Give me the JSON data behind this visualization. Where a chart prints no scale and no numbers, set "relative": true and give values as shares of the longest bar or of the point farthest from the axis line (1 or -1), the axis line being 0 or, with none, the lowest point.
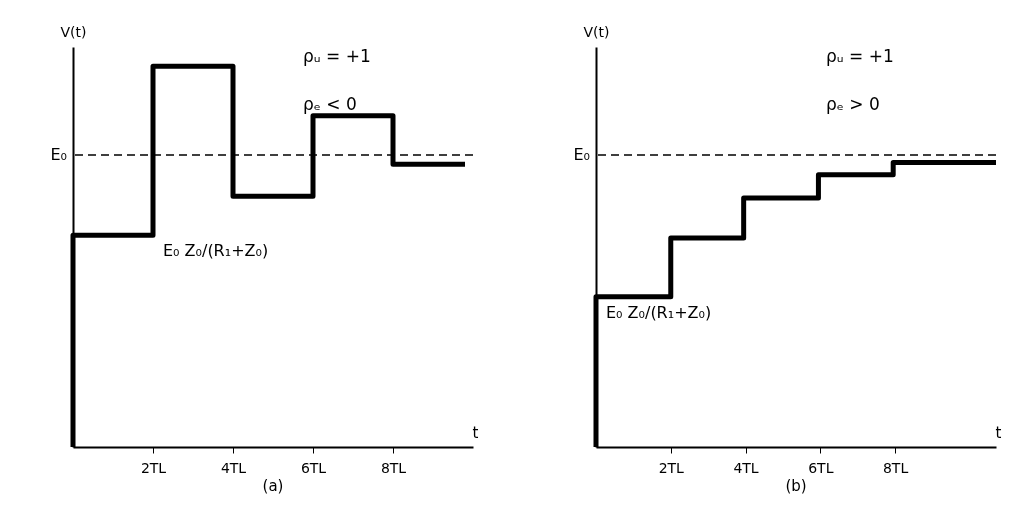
{
  "chart_data": [
    {
      "type": "step",
      "title": "(a)",
      "xlabel": "t",
      "ylabel": "V(t)",
      "relative": true,
      "xlim": [
        0,
        10
      ],
      "xticks": [
        {
          "value": 2,
          "label": "2TL"
        },
        {
          "value": 4,
          "label": "4TL"
        },
        {
          "value": 6,
          "label": "6TL"
        },
        {
          "value": 8,
          "label": "8TL"
        }
      ],
      "grid": false,
      "marker": "none",
      "line_style": "solid",
      "series": [
        {
          "color": "#000000",
          "x": [
            0,
            0,
            2,
            4,
            6,
            8,
            9.8
          ],
          "values": [
            0,
            0.556,
            1,
            0.659,
            0.87,
            0.743,
            0.743
          ]
        }
      ],
      "ref_lines": [
        {
          "axis": "y",
          "value": 0.767,
          "label": "E₀",
          "color": "#000000",
          "line_style": "dashed"
        }
      ],
      "annotations": [
        "ρᵤ = +1",
        "ρₑ < 0",
        {
          "text": "E₀  Z₀/(R₁+Z₀)",
          "x": 2,
          "y": 0.556
        }
      ]
    },
    {
      "type": "step",
      "title": "(b)",
      "xlabel": "t",
      "ylabel": "V(t)",
      "relative": true,
      "xlim": [
        0,
        10.7
      ],
      "xticks": [
        {
          "value": 2,
          "label": "2TL"
        },
        {
          "value": 4,
          "label": "4TL"
        },
        {
          "value": 6,
          "label": "6TL"
        },
        {
          "value": 8,
          "label": "8TL"
        }
      ],
      "grid": false,
      "marker": "none",
      "line_style": "solid",
      "series": [
        {
          "color": "#000000",
          "x": [
            0,
            0,
            2,
            3.95,
            5.95,
            7.95,
            10.7
          ],
          "values": [
            0,
            0.528,
            0.734,
            0.875,
            0.957,
            1,
            1
          ]
        }
      ],
      "ref_lines": [
        {
          "axis": "y",
          "value": 1.026,
          "label": "E₀",
          "color": "#000000",
          "line_style": "dashed"
        }
      ],
      "annotations": [
        "ρᵤ = +1",
        "ρₑ > 0",
        {
          "text": "E₀  Z₀/(R₁+Z₀)",
          "x": 0,
          "y": 0.528
        }
      ]
    }
  ]
}
